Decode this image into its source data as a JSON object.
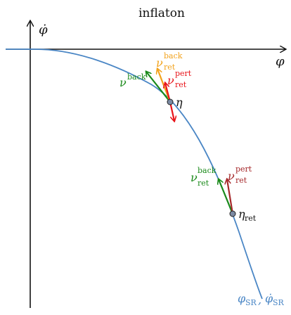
{
  "title": "inflaton",
  "axes": {
    "x_label": "φ",
    "y_label": "φ̇",
    "y_dot": "˙"
  },
  "colors": {
    "curve": "#4a86c5",
    "green": "#1a8a1a",
    "orange": "#f2a21c",
    "red": "#e8141a",
    "darkred": "#a5282a",
    "point_fill": "#7b8aa3"
  },
  "labels": {
    "nu_back": {
      "base": "ν",
      "sup": "back"
    },
    "nu_ret_back_top": {
      "base": "ν",
      "sup": "back",
      "sub": "ret"
    },
    "nu_ret_pert_top": {
      "base": "ν",
      "sup": "pert",
      "sub": "ret"
    },
    "eta": "η",
    "nu_ret_back_low": {
      "base": "ν",
      "sup": "back",
      "sub": "ret"
    },
    "nu_ret_pert_low": {
      "base": "ν",
      "sup": "pert",
      "sub": "ret"
    },
    "eta_ret": {
      "base": "η",
      "sub": "ret"
    },
    "phi_sr": {
      "base": "φ",
      "sub": "SR"
    },
    "comma": ",",
    "phidot_sr": {
      "base": "φ̇",
      "sub": "SR"
    }
  }
}
